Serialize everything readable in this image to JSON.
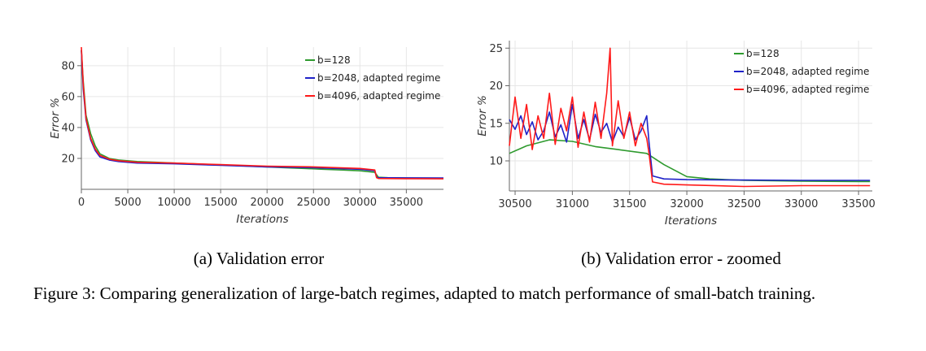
{
  "panel_a_caption": "(a) Validation error",
  "panel_b_caption": "(b) Validation error - zoomed",
  "figure_caption": "Figure 3: Comparing generalization of large-batch regimes, adapted to match performance of small-batch training.",
  "colors": {
    "b128": "#2e9a2e",
    "b2048": "#1f22c8",
    "b4096": "#ff1a1a"
  },
  "chart_data": [
    {
      "type": "line",
      "xlabel": "Iterations",
      "ylabel": "Error %",
      "xlim": [
        0,
        39000
      ],
      "ylim": [
        0,
        92
      ],
      "xticks": [
        0,
        5000,
        10000,
        15000,
        20000,
        25000,
        30000,
        35000
      ],
      "xtick_labels": [
        "0",
        "5000",
        "10000",
        "15000",
        "20000",
        "25000",
        "30000",
        "35000"
      ],
      "yticks": [
        20,
        40,
        60,
        80
      ],
      "ytick_labels": [
        "20",
        "40",
        "60",
        "80"
      ],
      "grid": true,
      "legend": "top-right",
      "series": [
        {
          "name": "b=128",
          "color": "#2e9a2e",
          "x": [
            0,
            200,
            500,
            1000,
            1500,
            2000,
            3000,
            4000,
            6000,
            8000,
            10000,
            12000,
            14000,
            16000,
            18000,
            20000,
            22000,
            24000,
            26000,
            28000,
            30000,
            31600,
            32000,
            33000,
            35000,
            39000
          ],
          "y": [
            90,
            70,
            48,
            36,
            28,
            23,
            20,
            19,
            18,
            17.5,
            17,
            16.5,
            16,
            15.5,
            15,
            14.5,
            14,
            13.5,
            13,
            12.5,
            12,
            11,
            7.8,
            7.5,
            7.3,
            7.2
          ]
        },
        {
          "name": "b=2048, adapted regime",
          "color": "#1f22c8",
          "x": [
            0,
            200,
            500,
            1000,
            1500,
            2000,
            3000,
            4000,
            6000,
            10000,
            15000,
            20000,
            25000,
            30000,
            31600,
            31800,
            32000,
            35000,
            39000
          ],
          "y": [
            90,
            65,
            45,
            32,
            25,
            21,
            19,
            18,
            17,
            16.5,
            15.5,
            14.5,
            14,
            13,
            12,
            7.8,
            7.5,
            7.4,
            7.3
          ]
        },
        {
          "name": "b=4096, adapted regime",
          "color": "#ff1a1a",
          "x": [
            0,
            200,
            500,
            1000,
            1500,
            2000,
            3000,
            4000,
            6000,
            10000,
            15000,
            20000,
            25000,
            30000,
            31600,
            31800,
            32000,
            35000,
            39000
          ],
          "y": [
            92,
            68,
            46,
            33,
            26,
            22,
            19.5,
            18.5,
            17.5,
            17,
            16,
            15,
            14.5,
            13.5,
            12.5,
            7.5,
            7.0,
            6.9,
            6.8
          ]
        }
      ]
    },
    {
      "type": "line",
      "xlabel": "Iterations",
      "ylabel": "Error %",
      "xlim": [
        30450,
        33620
      ],
      "ylim": [
        6,
        26
      ],
      "xticks": [
        30500,
        31000,
        31500,
        32000,
        32500,
        33000,
        33500
      ],
      "xtick_labels": [
        "30500",
        "31000",
        "31500",
        "32000",
        "32500",
        "33000",
        "33500"
      ],
      "yticks": [
        10,
        15,
        20,
        25
      ],
      "ytick_labels": [
        "10",
        "15",
        "20",
        "25"
      ],
      "grid": true,
      "legend": "top-right",
      "series": [
        {
          "name": "b=128",
          "color": "#2e9a2e",
          "x": [
            30450,
            30600,
            30800,
            31000,
            31200,
            31400,
            31650,
            31800,
            32000,
            32200,
            32500,
            33000,
            33500,
            33600
          ],
          "y": [
            11.0,
            12.0,
            12.8,
            12.6,
            11.9,
            11.5,
            11.0,
            9.5,
            7.9,
            7.6,
            7.4,
            7.3,
            7.25,
            7.25
          ]
        },
        {
          "name": "b=2048, adapted regime",
          "color": "#1f22c8",
          "x": [
            30450,
            30500,
            30550,
            30600,
            30650,
            30700,
            30750,
            30800,
            30850,
            30900,
            30950,
            31000,
            31050,
            31100,
            31150,
            31200,
            31250,
            31300,
            31350,
            31400,
            31450,
            31500,
            31550,
            31600,
            31650,
            31670,
            31700,
            31800,
            32000,
            32500,
            33000,
            33600
          ],
          "y": [
            15.5,
            14.2,
            16.0,
            13.5,
            15.2,
            12.8,
            14.0,
            16.5,
            13.2,
            14.8,
            12.5,
            17.5,
            13.0,
            15.5,
            12.8,
            16.2,
            13.8,
            15.0,
            12.5,
            14.5,
            13.2,
            15.8,
            12.8,
            14.0,
            16.0,
            12.5,
            8.0,
            7.6,
            7.5,
            7.45,
            7.4,
            7.4
          ]
        },
        {
          "name": "b=4096, adapted regime",
          "color": "#ff1a1a",
          "x": [
            30450,
            30500,
            30550,
            30600,
            30650,
            30700,
            30750,
            30800,
            30850,
            30900,
            30950,
            31000,
            31050,
            31100,
            31150,
            31200,
            31250,
            31300,
            31330,
            31350,
            31400,
            31450,
            31500,
            31550,
            31600,
            31650,
            31670,
            31700,
            31800,
            32000,
            32500,
            33000,
            33600
          ],
          "y": [
            12.0,
            18.5,
            13.0,
            17.5,
            11.5,
            16.0,
            13.0,
            19.0,
            12.2,
            17.0,
            14.0,
            18.5,
            11.8,
            16.5,
            12.5,
            17.8,
            13.0,
            19.0,
            25.0,
            12.0,
            18.0,
            13.0,
            16.5,
            12.0,
            15.0,
            13.0,
            11.0,
            7.2,
            6.9,
            6.8,
            6.6,
            6.7,
            6.7
          ]
        }
      ]
    }
  ]
}
